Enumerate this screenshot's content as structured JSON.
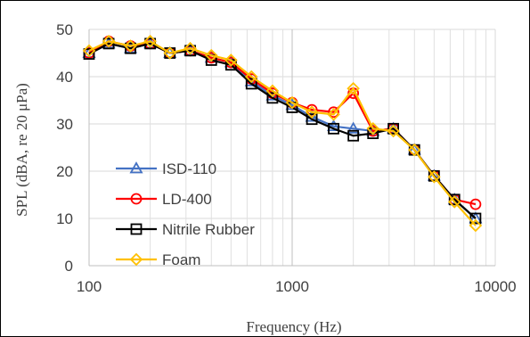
{
  "chart_data": {
    "type": "line",
    "xlabel": "Frequency (Hz)",
    "ylabel": "SPL (dBA, re 20 μPa)",
    "x_scale": "log",
    "xlim": [
      100,
      10000
    ],
    "ylim": [
      0,
      50
    ],
    "x_ticks": [
      100,
      1000,
      10000
    ],
    "x_tick_labels": [
      "100",
      "1000",
      "10000"
    ],
    "y_ticks": [
      0,
      10,
      20,
      30,
      40,
      50
    ],
    "y_tick_labels": [
      "0",
      "10",
      "20",
      "30",
      "40",
      "50"
    ],
    "grid": true,
    "legend_position": "lower-left",
    "x": [
      100,
      125,
      160,
      200,
      250,
      315,
      400,
      500,
      630,
      800,
      1000,
      1250,
      1600,
      2000,
      2500,
      3150,
      4000,
      5000,
      6300,
      8000
    ],
    "series": [
      {
        "name": "ISD-110",
        "color": "#4472c4",
        "marker": "triangle",
        "values": [
          45.0,
          47.0,
          46.0,
          47.0,
          45.0,
          45.5,
          44.0,
          43.0,
          39.0,
          36.0,
          34.0,
          31.5,
          29.5,
          29.0,
          28.5,
          29.0,
          24.5,
          19.0,
          14.0,
          10.0
        ]
      },
      {
        "name": "LD-400",
        "color": "#ff0000",
        "marker": "circle",
        "values": [
          45.0,
          47.5,
          46.5,
          47.0,
          45.0,
          45.5,
          44.0,
          43.0,
          39.5,
          36.5,
          34.5,
          33.0,
          32.5,
          36.5,
          28.5,
          29.0,
          24.5,
          19.0,
          14.0,
          13.0
        ]
      },
      {
        "name": "Nitrile Rubber",
        "color": "#000000",
        "marker": "square",
        "values": [
          44.8,
          47.0,
          46.0,
          47.0,
          45.0,
          45.5,
          43.5,
          42.5,
          38.5,
          35.5,
          33.5,
          31.0,
          29.0,
          27.5,
          28.0,
          29.0,
          24.5,
          19.0,
          14.0,
          10.0
        ]
      },
      {
        "name": "Foam",
        "color": "#ffc000",
        "marker": "diamond",
        "values": [
          45.5,
          47.5,
          46.5,
          47.5,
          45.0,
          46.0,
          44.5,
          43.5,
          40.0,
          37.0,
          34.5,
          32.5,
          32.0,
          37.5,
          29.0,
          28.5,
          24.5,
          18.8,
          13.5,
          8.5
        ]
      }
    ]
  }
}
